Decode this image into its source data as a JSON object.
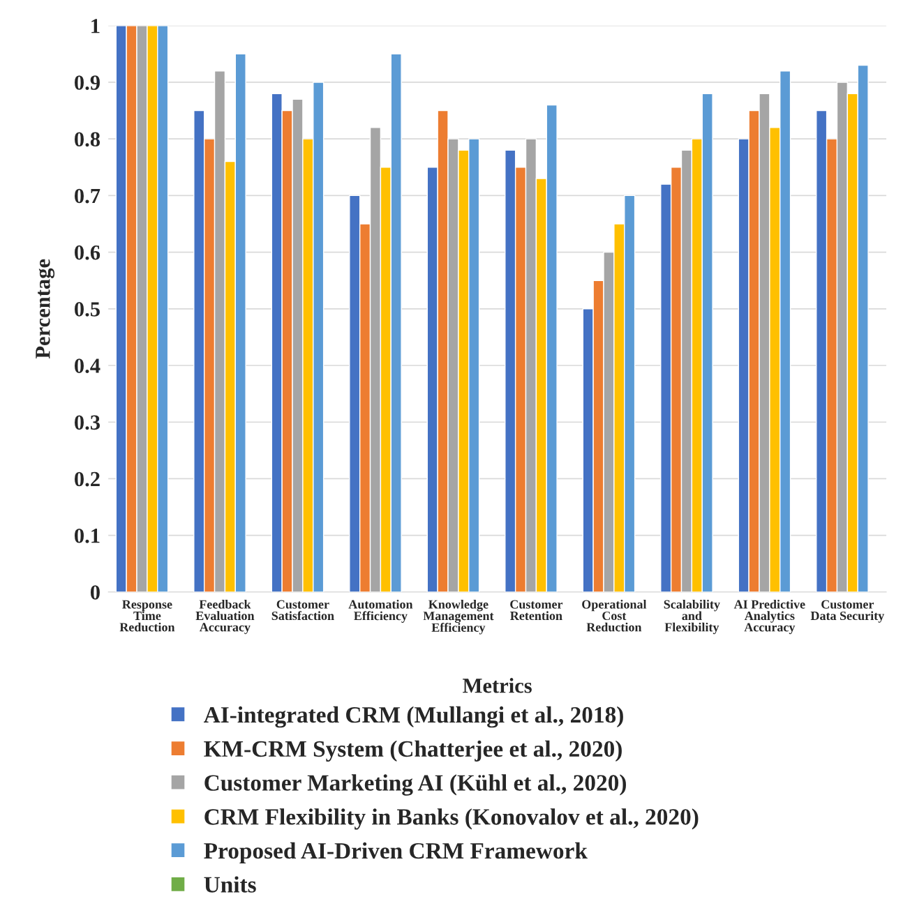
{
  "chart_data": {
    "type": "bar",
    "xlabel": "Metrics",
    "ylabel": "Percentage",
    "categories": [
      "Response\nTime\nReduction",
      "Feedback\nEvaluation\nAccuracy",
      "Customer\nSatisfaction",
      "Automation\nEfficiency",
      "Knowledge\nManagement\nEfficiency",
      "Customer\nRetention",
      "Operational\nCost\nReduction",
      "Scalability\nand\nFlexibility",
      "AI Predictive\nAnalytics\nAccuracy",
      "Customer\nData Security"
    ],
    "series": [
      {
        "name": "AI-integrated CRM (Mullangi et al., 2018)",
        "color": "#4472c4",
        "values": [
          1,
          0.85,
          0.88,
          0.7,
          0.75,
          0.78,
          0.5,
          0.72,
          0.8,
          0.85
        ]
      },
      {
        "name": "KM-CRM System (Chatterjee et al., 2020)",
        "color": "#ed7d31",
        "values": [
          1,
          0.8,
          0.85,
          0.65,
          0.85,
          0.75,
          0.55,
          0.75,
          0.85,
          0.8
        ]
      },
      {
        "name": "Customer Marketing AI (Kühl et al., 2020)",
        "color": "#a5a5a5",
        "values": [
          1,
          0.92,
          0.87,
          0.82,
          0.8,
          0.8,
          0.6,
          0.78,
          0.88,
          0.9
        ]
      },
      {
        "name": "CRM Flexibility in Banks (Konovalov et al., 2020)",
        "color": "#ffc000",
        "values": [
          1,
          0.76,
          0.8,
          0.75,
          0.78,
          0.73,
          0.65,
          0.8,
          0.82,
          0.88
        ]
      },
      {
        "name": "Proposed AI-Driven CRM Framework",
        "color": "#5b9bd5",
        "values": [
          1,
          0.95,
          0.9,
          0.95,
          0.8,
          0.86,
          0.7,
          0.88,
          0.92,
          0.93
        ]
      },
      {
        "name": "Units",
        "color": "#70ad47",
        "values": [
          null,
          null,
          null,
          null,
          null,
          null,
          null,
          null,
          null,
          null
        ]
      }
    ],
    "ylim": [
      0,
      1
    ],
    "yticks": [
      0,
      0.1,
      0.2,
      0.3,
      0.4,
      0.5,
      0.6,
      0.7,
      0.8,
      0.9,
      1
    ],
    "grid": "y",
    "legend": "bottom"
  }
}
